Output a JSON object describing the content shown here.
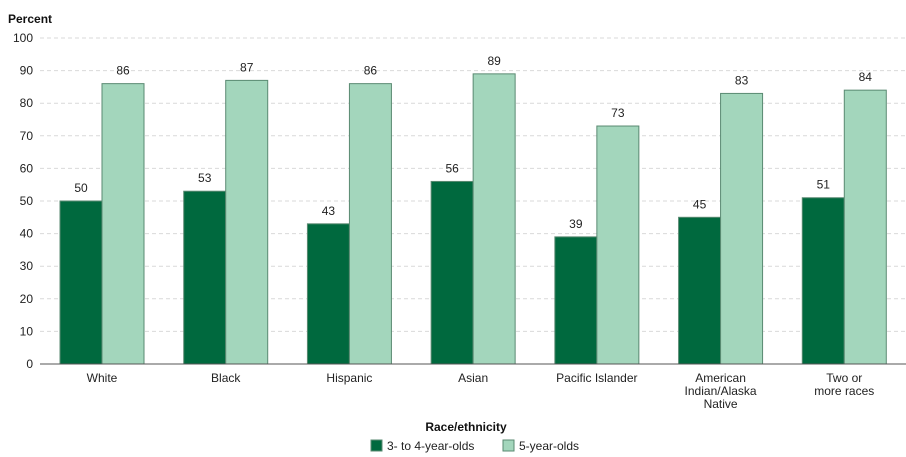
{
  "chart_data": {
    "type": "bar",
    "ylabel": "Percent",
    "xlabel": "Race/ethnicity",
    "ylim": [
      0,
      100
    ],
    "yticks": [
      0,
      10,
      20,
      30,
      40,
      50,
      60,
      70,
      80,
      90,
      100
    ],
    "grid": true,
    "legend_position": "bottom-center",
    "categories": [
      [
        "White"
      ],
      [
        "Black"
      ],
      [
        "Hispanic"
      ],
      [
        "Asian"
      ],
      [
        "Pacific Islander"
      ],
      [
        "American",
        "Indian/Alaska",
        "Native"
      ],
      [
        "Two or",
        "more races"
      ]
    ],
    "series": [
      {
        "name": "3- to 4-year-olds",
        "color": "#00693e",
        "values": [
          50,
          53,
          43,
          56,
          39,
          45,
          51
        ]
      },
      {
        "name": "5-year-olds",
        "color": "#a3d6bc",
        "values": [
          86,
          87,
          86,
          89,
          73,
          83,
          84
        ]
      }
    ]
  }
}
